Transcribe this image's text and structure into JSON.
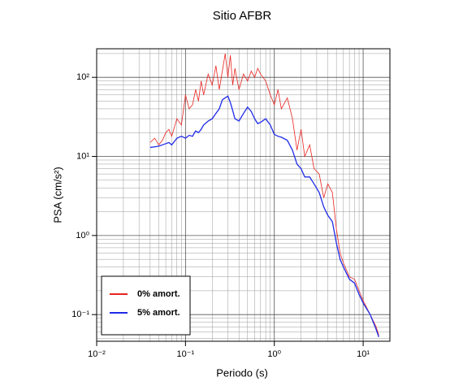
{
  "chart_data": {
    "type": "line",
    "title": "Sitio AFBR",
    "xlabel": "Periodo (s)",
    "ylabel": "PSA (cm/s²)",
    "xscale": "log",
    "yscale": "log",
    "grid": true,
    "legend": "lower left",
    "xlim": [
      0.01,
      20
    ],
    "ylim": [
      0.046,
      230
    ],
    "xticks": [
      {
        "value": 0.01,
        "label": "10⁻²"
      },
      {
        "value": 0.1,
        "label": "10⁻¹"
      },
      {
        "value": 1,
        "label": "10⁰"
      },
      {
        "value": 10,
        "label": "10¹"
      }
    ],
    "yticks": [
      {
        "value": 0.1,
        "label": "10⁻¹"
      },
      {
        "value": 1,
        "label": "10⁰"
      },
      {
        "value": 10,
        "label": "10¹"
      },
      {
        "value": 100,
        "label": "10²"
      }
    ],
    "xminor": [
      0.02,
      0.03,
      0.04,
      0.05,
      0.06,
      0.07,
      0.08,
      0.09,
      0.2,
      0.3,
      0.4,
      0.5,
      0.6,
      0.7,
      0.8,
      0.9,
      2,
      3,
      4,
      5,
      6,
      7,
      8,
      9
    ],
    "yminor": [
      0.05,
      0.06,
      0.07,
      0.08,
      0.09,
      0.2,
      0.3,
      0.4,
      0.5,
      0.6,
      0.7,
      0.8,
      0.9,
      2,
      3,
      4,
      5,
      6,
      7,
      8,
      9,
      20,
      30,
      40,
      50,
      60,
      70,
      80,
      90,
      200
    ],
    "x": [
      0.04,
      0.045,
      0.05,
      0.055,
      0.06,
      0.065,
      0.07,
      0.08,
      0.09,
      0.1,
      0.11,
      0.12,
      0.13,
      0.14,
      0.15,
      0.16,
      0.18,
      0.2,
      0.22,
      0.24,
      0.26,
      0.28,
      0.3,
      0.32,
      0.34,
      0.36,
      0.4,
      0.45,
      0.5,
      0.55,
      0.6,
      0.65,
      0.7,
      0.8,
      0.9,
      1.0,
      1.1,
      1.2,
      1.4,
      1.6,
      1.8,
      2.0,
      2.2,
      2.5,
      2.8,
      3.2,
      3.6,
      4.0,
      4.5,
      5.0,
      5.5,
      6.0,
      7.0,
      8.0,
      9.0,
      10,
      12,
      14,
      15
    ],
    "series": [
      {
        "name": "0% amort.",
        "color": "#e8231f",
        "width": 0.8,
        "values": [
          15,
          17,
          14,
          16,
          20,
          22,
          18,
          30,
          25,
          60,
          40,
          45,
          70,
          50,
          90,
          60,
          110,
          80,
          140,
          70,
          120,
          200,
          100,
          190,
          80,
          130,
          70,
          110,
          90,
          120,
          100,
          130,
          110,
          90,
          60,
          45,
          70,
          40,
          55,
          30,
          12,
          22,
          10,
          14,
          7,
          6,
          3,
          4.5,
          3.5,
          1.2,
          0.6,
          0.45,
          0.3,
          0.28,
          0.2,
          0.15,
          0.1,
          0.07,
          0.055
        ]
      },
      {
        "name": "5% amort.",
        "color": "#1f2be8",
        "width": 1.3,
        "values": [
          13,
          13.2,
          13.5,
          14,
          14.5,
          15,
          14,
          17,
          18,
          17,
          18.5,
          18,
          21,
          20,
          22,
          25,
          28,
          30,
          35,
          40,
          52,
          55,
          58,
          48,
          38,
          30,
          28,
          35,
          42,
          37,
          30,
          26,
          27,
          30,
          25,
          19,
          18,
          17.5,
          16,
          12,
          8,
          7,
          5.5,
          5.5,
          4.5,
          3.5,
          2.3,
          1.8,
          1.5,
          0.8,
          0.5,
          0.4,
          0.28,
          0.25,
          0.18,
          0.14,
          0.1,
          0.065,
          0.052
        ]
      }
    ]
  }
}
